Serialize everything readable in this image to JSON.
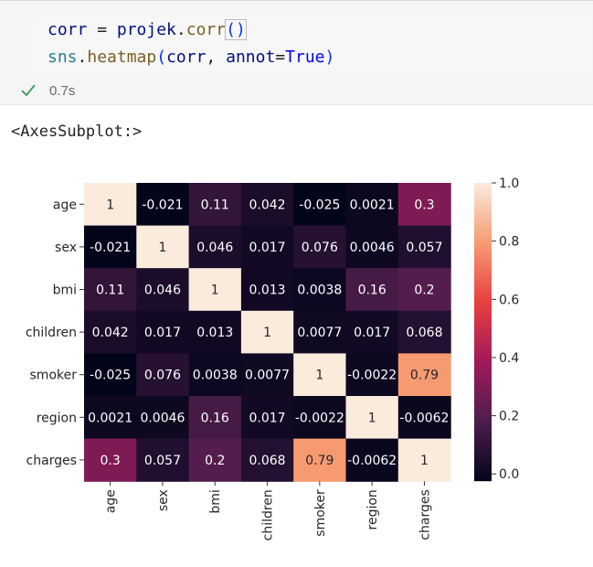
{
  "code": {
    "line1": {
      "var": "corr",
      "op": " = ",
      "obj": "projek",
      "dot": ".",
      "fn": "corr",
      "paren": "()"
    },
    "line2": {
      "mod": "sns",
      "dot": ".",
      "fn": "heatmap",
      "open": "(",
      "arg1": "corr",
      "sep": ", ",
      "kw": "annot",
      "eq": "=",
      "val": "True",
      "close": ")"
    }
  },
  "status": {
    "icon": "check-icon",
    "time": "0.7s"
  },
  "output": {
    "text": "<AxesSubplot:>"
  },
  "chart_data": {
    "type": "heatmap",
    "x_categories": [
      "age",
      "sex",
      "bmi",
      "children",
      "smoker",
      "region",
      "charges"
    ],
    "y_categories": [
      "age",
      "sex",
      "bmi",
      "children",
      "smoker",
      "region",
      "charges"
    ],
    "values": [
      [
        1,
        -0.021,
        0.11,
        0.042,
        -0.025,
        0.0021,
        0.3
      ],
      [
        -0.021,
        1,
        0.046,
        0.017,
        0.076,
        0.0046,
        0.057
      ],
      [
        0.11,
        0.046,
        1,
        0.013,
        0.0038,
        0.16,
        0.2
      ],
      [
        0.042,
        0.017,
        0.013,
        1,
        0.0077,
        0.017,
        0.068
      ],
      [
        -0.025,
        0.076,
        0.0038,
        0.0077,
        1,
        -0.0022,
        0.79
      ],
      [
        0.0021,
        0.0046,
        0.16,
        0.017,
        -0.0022,
        1,
        -0.0062
      ],
      [
        0.3,
        0.057,
        0.2,
        0.068,
        0.79,
        -0.0062,
        1
      ]
    ],
    "labels": [
      [
        "1",
        "-0.021",
        "0.11",
        "0.042",
        "-0.025",
        "0.0021",
        "0.3"
      ],
      [
        "-0.021",
        "1",
        "0.046",
        "0.017",
        "0.076",
        "0.0046",
        "0.057"
      ],
      [
        "0.11",
        "0.046",
        "1",
        "0.013",
        "0.0038",
        "0.16",
        "0.2"
      ],
      [
        "0.042",
        "0.017",
        "0.013",
        "1",
        "0.0077",
        "0.017",
        "0.068"
      ],
      [
        "-0.025",
        "0.076",
        "0.0038",
        "0.0077",
        "1",
        "-0.0022",
        "0.79"
      ],
      [
        "0.0021",
        "0.0046",
        "0.16",
        "0.017",
        "-0.0022",
        "1",
        "-0.0062"
      ],
      [
        "0.3",
        "0.057",
        "0.2",
        "0.068",
        "0.79",
        "-0.0062",
        "1"
      ]
    ],
    "colorbar": {
      "min": -0.025,
      "max": 1.0,
      "ticks": [
        0.0,
        0.2,
        0.4,
        0.6,
        0.8,
        1.0
      ],
      "tick_labels": [
        "0.0",
        "0.2",
        "0.4",
        "0.6",
        "0.8",
        "1.0"
      ]
    },
    "colormap": "rocket",
    "colormap_stops": [
      "#03051a",
      "#4c1d4b",
      "#a11a5b",
      "#e83f3f",
      "#f69c73",
      "#faebdd"
    ]
  }
}
